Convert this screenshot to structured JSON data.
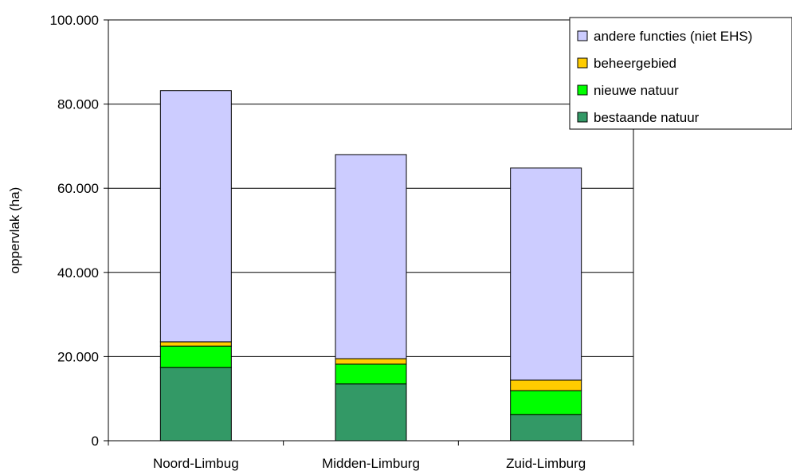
{
  "chart_data": {
    "type": "bar",
    "stacked": true,
    "title": "",
    "xlabel": "",
    "ylabel": "oppervlak (ha)",
    "ylim": [
      0,
      100000
    ],
    "y_ticks": [
      0,
      20000,
      40000,
      60000,
      80000,
      100000
    ],
    "y_tick_labels": [
      "0",
      "20.000",
      "40.000",
      "60.000",
      "80.000",
      "100.000"
    ],
    "grid": true,
    "legend_position": "top-right",
    "categories": [
      "Noord-Limbug",
      "Midden-Limburg",
      "Zuid-Limburg"
    ],
    "series": [
      {
        "name": "bestaande natuur",
        "color": "#339966",
        "values": [
          17400,
          13500,
          6200
        ]
      },
      {
        "name": "nieuwe natuur",
        "color": "#00ff00",
        "values": [
          5100,
          4700,
          5700
        ]
      },
      {
        "name": "beheergebied",
        "color": "#ffcc00",
        "values": [
          1000,
          1300,
          2500
        ]
      },
      {
        "name": "andere functies (niet EHS)",
        "color": "#ccccff",
        "values": [
          59700,
          48500,
          50400
        ]
      }
    ],
    "legend_order": [
      "andere functies (niet EHS)",
      "beheergebied",
      "nieuwe natuur",
      "bestaande natuur"
    ]
  }
}
